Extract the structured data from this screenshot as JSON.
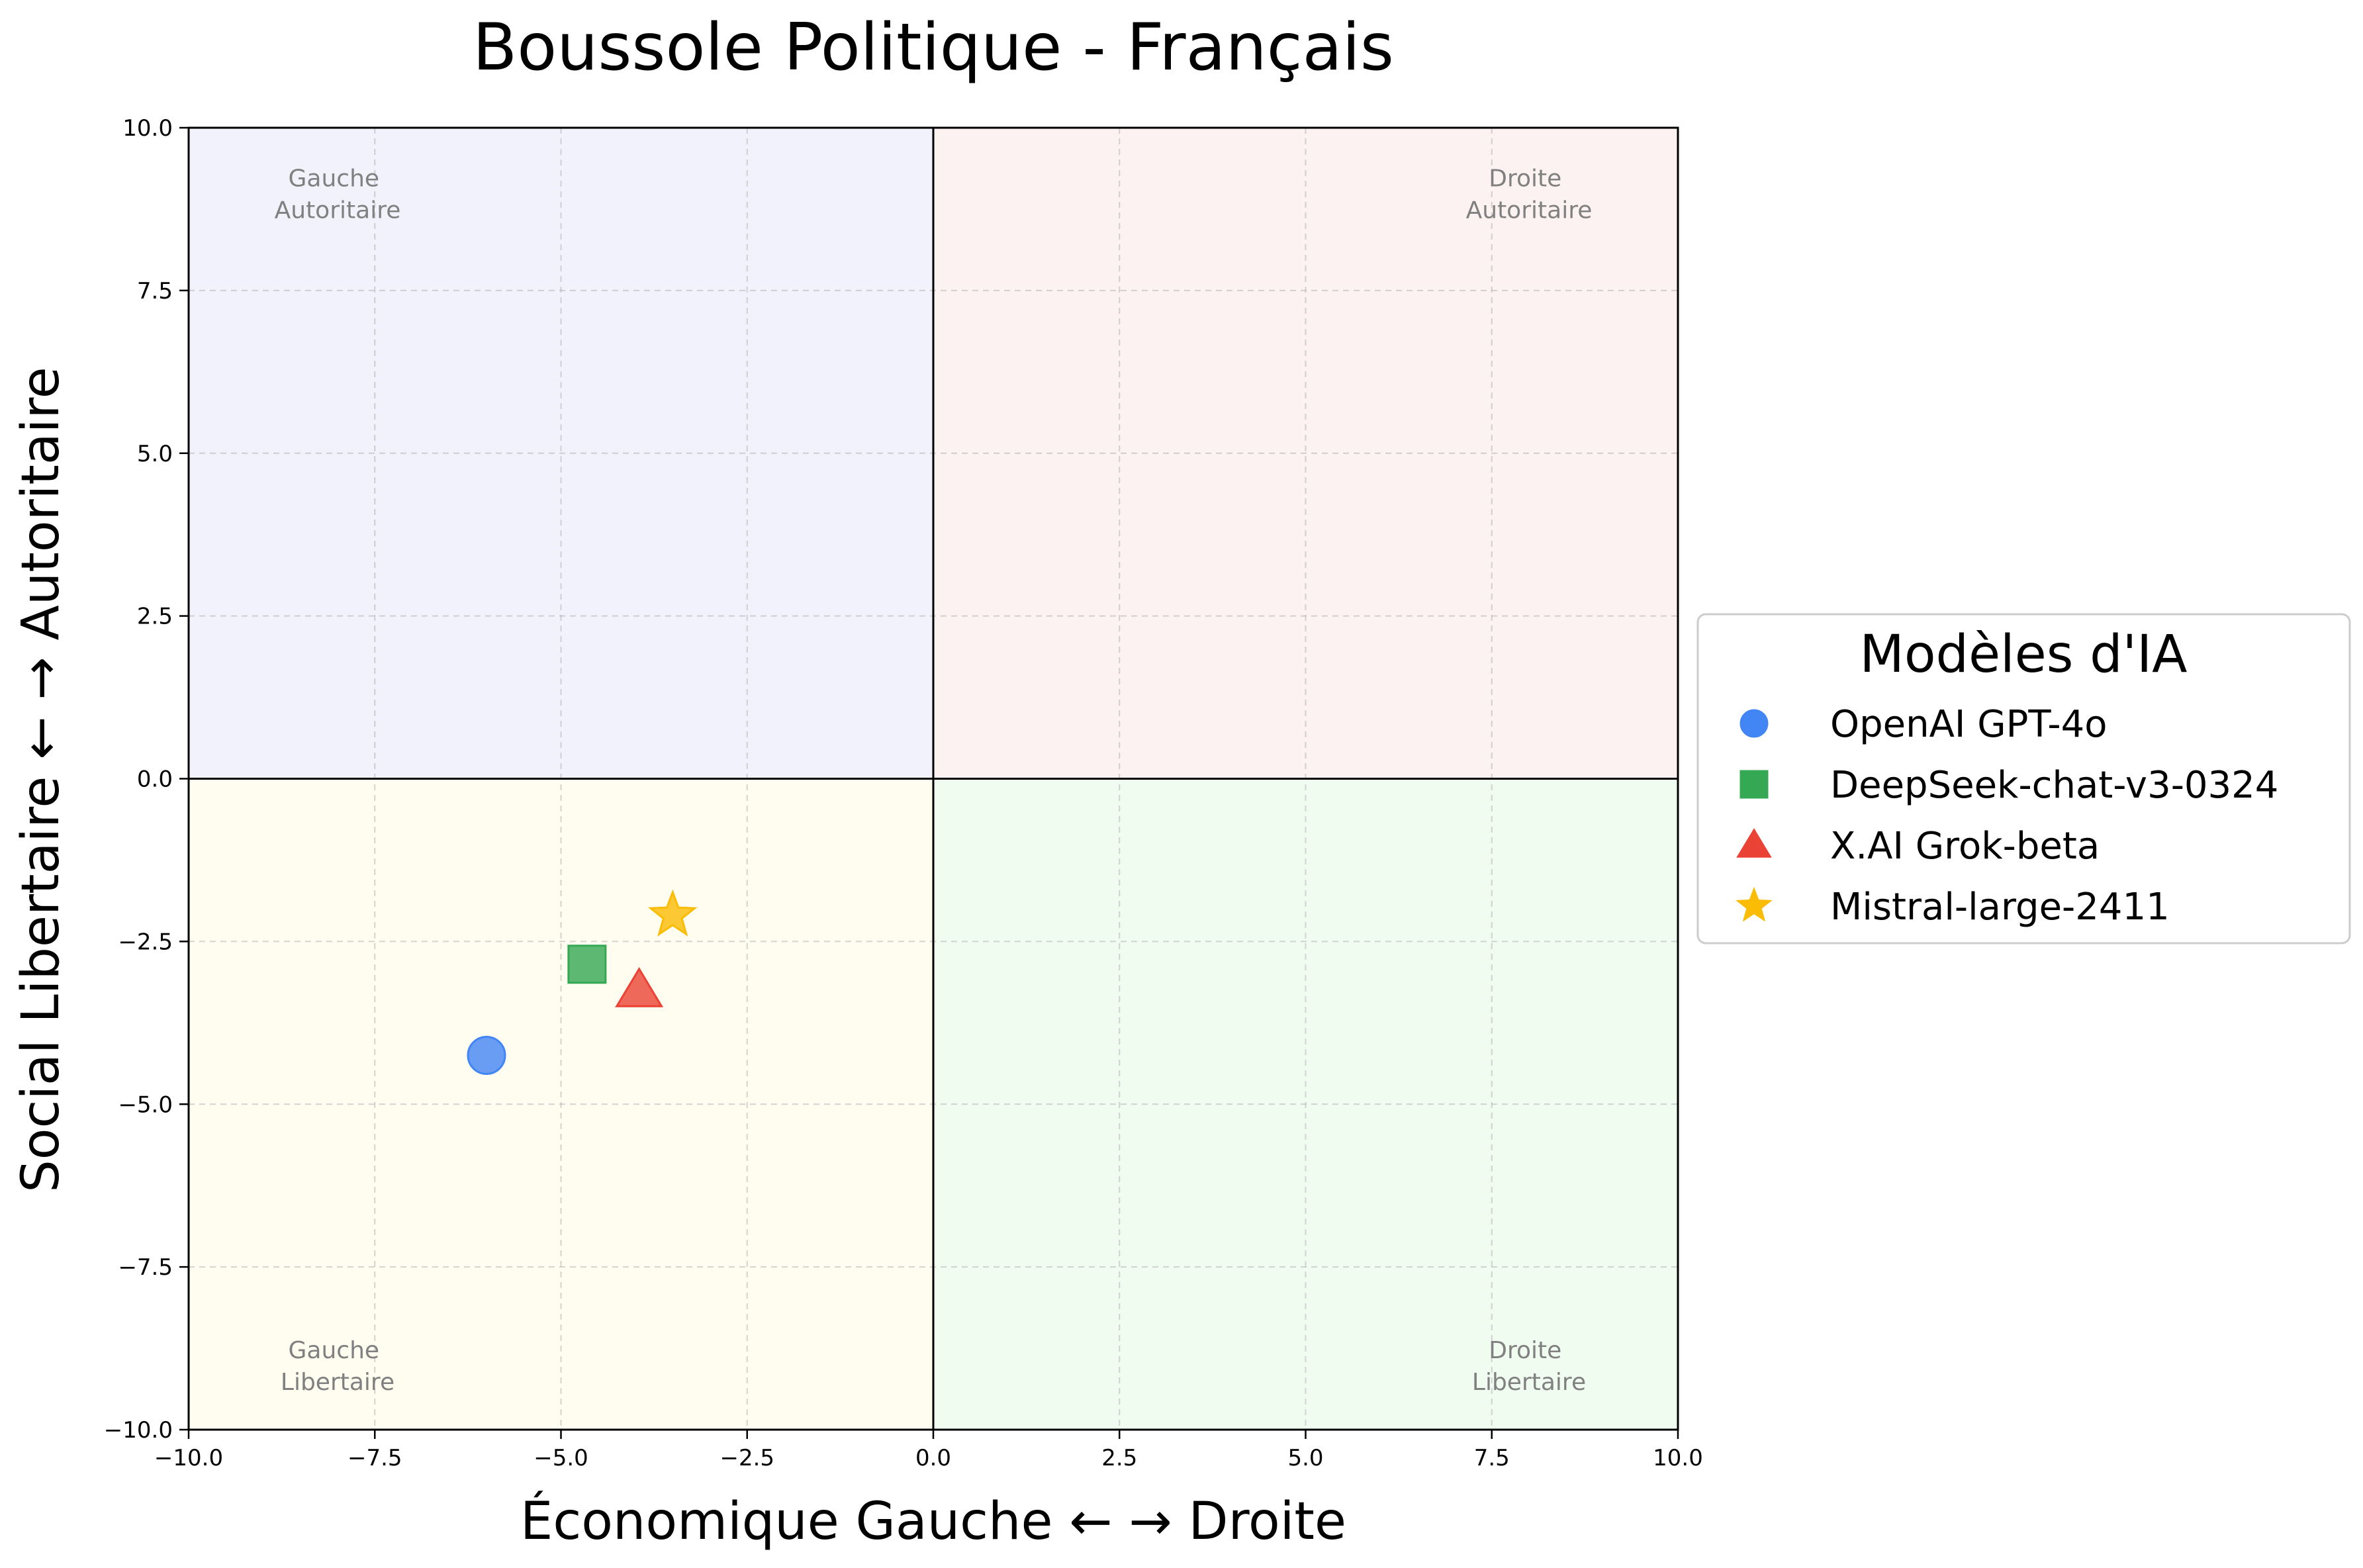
{
  "chart_data": {
    "type": "scatter",
    "title": "Boussole Politique - Français",
    "xlabel": "Économique Gauche ← → Droite",
    "ylabel": "Social Libertaire ← → Autoritaire",
    "xlim": [
      -10,
      10
    ],
    "ylim": [
      -10,
      10
    ],
    "x_ticks": [
      "−10.0",
      "−7.5",
      "−5.0",
      "−2.5",
      "0.0",
      "2.5",
      "5.0",
      "7.5",
      "10.0"
    ],
    "y_ticks": [
      "−10.0",
      "−7.5",
      "−5.0",
      "−2.5",
      "0.0",
      "2.5",
      "5.0",
      "7.5",
      "10.0"
    ],
    "grid": true,
    "legend_title": "Modèles d'IA",
    "legend_position": "right-outside",
    "quadrants": [
      {
        "label_line1": "Gauche",
        "label_line2": "Autoritaire",
        "color": "#f2f2fd"
      },
      {
        "label_line1": "Droite",
        "label_line2": "Autoritaire",
        "color": "#fdf2f2"
      },
      {
        "label_line1": "Gauche",
        "label_line2": "Libertaire",
        "color": "#fefdf0"
      },
      {
        "label_line1": "Droite",
        "label_line2": "Libertaire",
        "color": "#f1fcf1"
      }
    ],
    "series": [
      {
        "name": "OpenAI GPT-4o",
        "marker": "circle",
        "color": "#4285f4",
        "x": -6.0,
        "y": -4.25
      },
      {
        "name": "DeepSeek-chat-v3-0324",
        "marker": "square",
        "color": "#34a853",
        "x": -4.65,
        "y": -2.85
      },
      {
        "name": "X.AI Grok-beta",
        "marker": "triangle",
        "color": "#ea4335",
        "x": -3.95,
        "y": -3.25
      },
      {
        "name": "Mistral-large-2411",
        "marker": "star",
        "color": "#fbbc05",
        "x": -3.5,
        "y": -2.1
      }
    ]
  }
}
